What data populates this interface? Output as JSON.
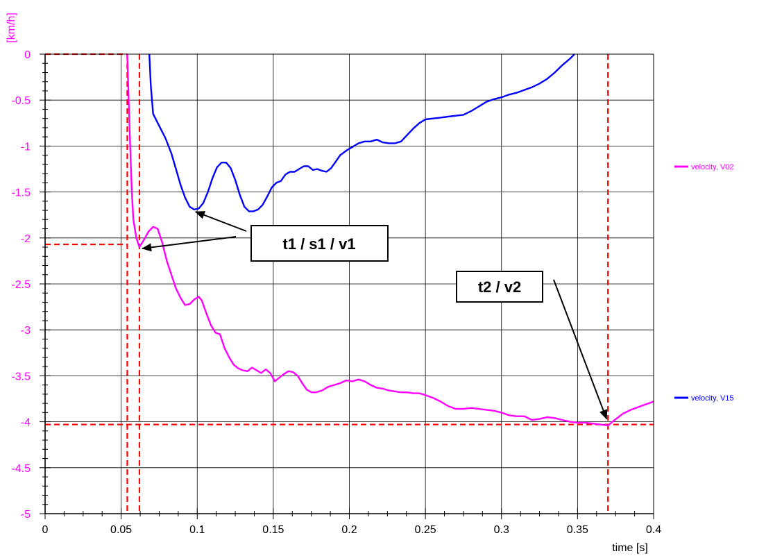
{
  "chart_data": {
    "type": "line",
    "xlabel": "time [s]",
    "ylabel": "[km/h]",
    "xlim": [
      0,
      0.4
    ],
    "ylim": [
      -5,
      0
    ],
    "x_ticks": [
      0,
      0.05,
      0.1,
      0.15,
      0.2,
      0.25,
      0.3,
      0.35,
      0.4
    ],
    "x_tick_labels": [
      "0",
      "0.05",
      "0.1",
      "0.15",
      "0.2",
      "0.25",
      "0.3",
      "0.35",
      "0.4"
    ],
    "y_ticks": [
      0,
      -0.5,
      -1,
      -1.5,
      -2,
      -2.5,
      -3,
      -3.5,
      -4,
      -4.5,
      -5
    ],
    "y_tick_labels": [
      "0",
      "-0.5",
      "-1",
      "-1.5",
      "-2",
      "-2.5",
      "-3",
      "-3.5",
      "-4",
      "-4.5",
      "-5"
    ],
    "grid": true,
    "legend_position": "right",
    "series": [
      {
        "name": "velocity, V02",
        "color": "#ff00ff",
        "points": [
          [
            0.054,
            0.0
          ],
          [
            0.0555,
            -0.8
          ],
          [
            0.057,
            -1.5
          ],
          [
            0.058,
            -1.8
          ],
          [
            0.06,
            -2.0
          ],
          [
            0.062,
            -2.1
          ],
          [
            0.065,
            -2.02
          ],
          [
            0.068,
            -1.93
          ],
          [
            0.071,
            -1.88
          ],
          [
            0.074,
            -1.9
          ],
          [
            0.077,
            -2.05
          ],
          [
            0.08,
            -2.25
          ],
          [
            0.083,
            -2.4
          ],
          [
            0.086,
            -2.55
          ],
          [
            0.089,
            -2.65
          ],
          [
            0.092,
            -2.73
          ],
          [
            0.095,
            -2.72
          ],
          [
            0.098,
            -2.67
          ],
          [
            0.101,
            -2.64
          ],
          [
            0.103,
            -2.68
          ],
          [
            0.106,
            -2.82
          ],
          [
            0.109,
            -2.95
          ],
          [
            0.112,
            -3.03
          ],
          [
            0.115,
            -3.05
          ],
          [
            0.118,
            -3.2
          ],
          [
            0.121,
            -3.3
          ],
          [
            0.124,
            -3.38
          ],
          [
            0.127,
            -3.42
          ],
          [
            0.13,
            -3.44
          ],
          [
            0.133,
            -3.45
          ],
          [
            0.136,
            -3.41
          ],
          [
            0.139,
            -3.44
          ],
          [
            0.142,
            -3.47
          ],
          [
            0.145,
            -3.43
          ],
          [
            0.148,
            -3.47
          ],
          [
            0.151,
            -3.56
          ],
          [
            0.154,
            -3.52
          ],
          [
            0.157,
            -3.48
          ],
          [
            0.16,
            -3.45
          ],
          [
            0.163,
            -3.46
          ],
          [
            0.166,
            -3.5
          ],
          [
            0.169,
            -3.58
          ],
          [
            0.172,
            -3.65
          ],
          [
            0.175,
            -3.68
          ],
          [
            0.178,
            -3.68
          ],
          [
            0.182,
            -3.66
          ],
          [
            0.186,
            -3.62
          ],
          [
            0.19,
            -3.6
          ],
          [
            0.194,
            -3.58
          ],
          [
            0.198,
            -3.55
          ],
          [
            0.202,
            -3.56
          ],
          [
            0.206,
            -3.54
          ],
          [
            0.21,
            -3.56
          ],
          [
            0.214,
            -3.6
          ],
          [
            0.218,
            -3.63
          ],
          [
            0.222,
            -3.64
          ],
          [
            0.226,
            -3.66
          ],
          [
            0.23,
            -3.67
          ],
          [
            0.234,
            -3.68
          ],
          [
            0.238,
            -3.68
          ],
          [
            0.242,
            -3.69
          ],
          [
            0.246,
            -3.69
          ],
          [
            0.25,
            -3.71
          ],
          [
            0.255,
            -3.74
          ],
          [
            0.26,
            -3.78
          ],
          [
            0.265,
            -3.83
          ],
          [
            0.27,
            -3.86
          ],
          [
            0.275,
            -3.86
          ],
          [
            0.28,
            -3.85
          ],
          [
            0.285,
            -3.86
          ],
          [
            0.29,
            -3.87
          ],
          [
            0.295,
            -3.88
          ],
          [
            0.3,
            -3.9
          ],
          [
            0.305,
            -3.93
          ],
          [
            0.31,
            -3.94
          ],
          [
            0.315,
            -3.94
          ],
          [
            0.32,
            -3.98
          ],
          [
            0.325,
            -3.97
          ],
          [
            0.33,
            -3.95
          ],
          [
            0.335,
            -3.96
          ],
          [
            0.34,
            -3.98
          ],
          [
            0.345,
            -4.0
          ],
          [
            0.35,
            -4.01
          ],
          [
            0.355,
            -4.01
          ],
          [
            0.36,
            -4.02
          ],
          [
            0.365,
            -4.03
          ],
          [
            0.37,
            -4.04
          ],
          [
            0.373,
            -4.0
          ],
          [
            0.376,
            -3.96
          ],
          [
            0.38,
            -3.91
          ],
          [
            0.385,
            -3.87
          ],
          [
            0.39,
            -3.84
          ],
          [
            0.395,
            -3.81
          ],
          [
            0.4,
            -3.78
          ]
        ]
      },
      {
        "name": "velocity, V15",
        "color": "#0000ff",
        "points": [
          [
            0.0685,
            0.0
          ],
          [
            0.0695,
            -0.35
          ],
          [
            0.071,
            -0.65
          ],
          [
            0.075,
            -0.78
          ],
          [
            0.079,
            -0.91
          ],
          [
            0.083,
            -1.08
          ],
          [
            0.086,
            -1.25
          ],
          [
            0.089,
            -1.42
          ],
          [
            0.092,
            -1.56
          ],
          [
            0.095,
            -1.66
          ],
          [
            0.098,
            -1.69
          ],
          [
            0.101,
            -1.68
          ],
          [
            0.104,
            -1.62
          ],
          [
            0.107,
            -1.5
          ],
          [
            0.11,
            -1.35
          ],
          [
            0.113,
            -1.23
          ],
          [
            0.116,
            -1.18
          ],
          [
            0.119,
            -1.18
          ],
          [
            0.122,
            -1.24
          ],
          [
            0.125,
            -1.37
          ],
          [
            0.128,
            -1.53
          ],
          [
            0.131,
            -1.66
          ],
          [
            0.134,
            -1.71
          ],
          [
            0.137,
            -1.71
          ],
          [
            0.14,
            -1.69
          ],
          [
            0.143,
            -1.64
          ],
          [
            0.146,
            -1.55
          ],
          [
            0.149,
            -1.45
          ],
          [
            0.152,
            -1.4
          ],
          [
            0.155,
            -1.38
          ],
          [
            0.158,
            -1.31
          ],
          [
            0.161,
            -1.28
          ],
          [
            0.164,
            -1.28
          ],
          [
            0.167,
            -1.25
          ],
          [
            0.17,
            -1.22
          ],
          [
            0.173,
            -1.22
          ],
          [
            0.176,
            -1.26
          ],
          [
            0.179,
            -1.25
          ],
          [
            0.182,
            -1.27
          ],
          [
            0.185,
            -1.28
          ],
          [
            0.188,
            -1.24
          ],
          [
            0.191,
            -1.17
          ],
          [
            0.194,
            -1.1
          ],
          [
            0.198,
            -1.05
          ],
          [
            0.202,
            -1.01
          ],
          [
            0.206,
            -0.97
          ],
          [
            0.21,
            -0.95
          ],
          [
            0.214,
            -0.95
          ],
          [
            0.218,
            -0.93
          ],
          [
            0.222,
            -0.96
          ],
          [
            0.226,
            -0.97
          ],
          [
            0.23,
            -0.97
          ],
          [
            0.234,
            -0.95
          ],
          [
            0.238,
            -0.88
          ],
          [
            0.242,
            -0.81
          ],
          [
            0.246,
            -0.75
          ],
          [
            0.25,
            -0.71
          ],
          [
            0.255,
            -0.7
          ],
          [
            0.26,
            -0.69
          ],
          [
            0.265,
            -0.68
          ],
          [
            0.27,
            -0.67
          ],
          [
            0.275,
            -0.66
          ],
          [
            0.28,
            -0.62
          ],
          [
            0.285,
            -0.57
          ],
          [
            0.29,
            -0.52
          ],
          [
            0.295,
            -0.49
          ],
          [
            0.3,
            -0.47
          ],
          [
            0.305,
            -0.44
          ],
          [
            0.31,
            -0.42
          ],
          [
            0.315,
            -0.39
          ],
          [
            0.32,
            -0.36
          ],
          [
            0.325,
            -0.32
          ],
          [
            0.33,
            -0.27
          ],
          [
            0.335,
            -0.2
          ],
          [
            0.34,
            -0.12
          ],
          [
            0.345,
            -0.05
          ],
          [
            0.348,
            0.0
          ]
        ]
      }
    ],
    "reference_lines": {
      "color": "#ff0000",
      "vertical_x": [
        0.054,
        0.062,
        0.37
      ],
      "horizontal": [
        {
          "y": 0.0,
          "x_from": 0,
          "x_to": 0.054
        },
        {
          "y": -2.07,
          "x_from": 0,
          "x_to": 0.054
        },
        {
          "y": -4.03,
          "x_from": 0,
          "x_to": 0.4
        }
      ]
    },
    "annotations": [
      {
        "text": "t1 / s1 / v1",
        "arrow_targets": [
          [
            0.098,
            -1.7
          ],
          [
            0.063,
            -2.1
          ]
        ]
      },
      {
        "text": "t2 / v2",
        "arrow_targets": [
          [
            0.37,
            -4.03
          ]
        ]
      }
    ],
    "axis_color": "#000000",
    "y_text_color": "#ff00ff"
  }
}
